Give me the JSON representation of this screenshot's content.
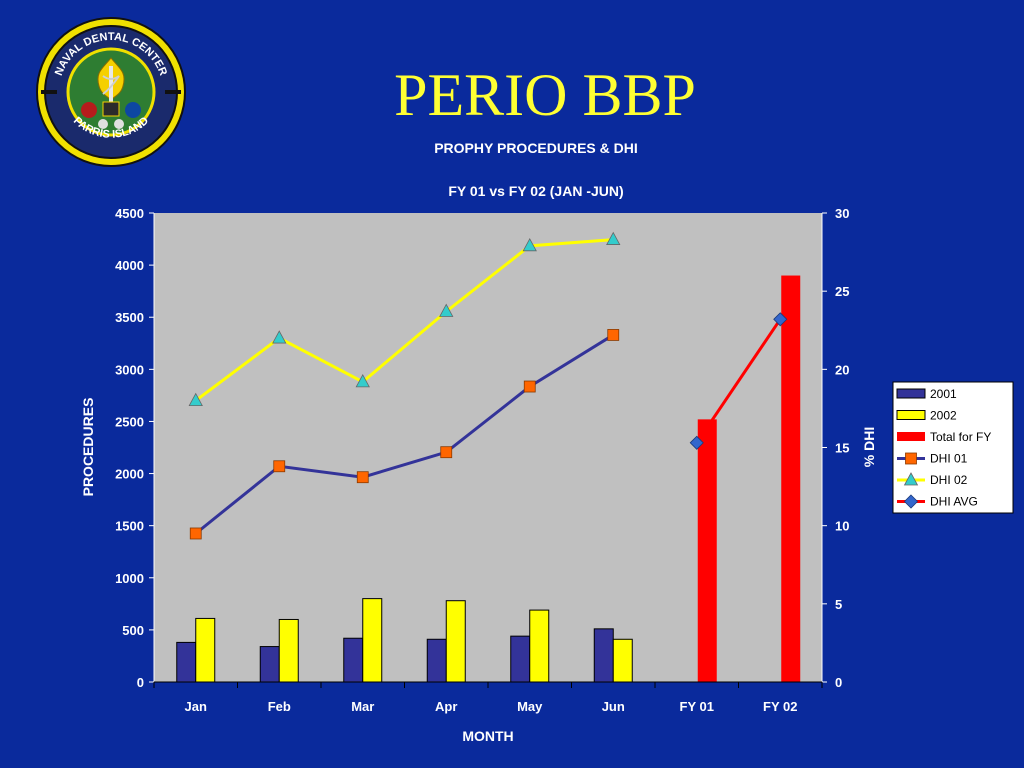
{
  "slide": {
    "title": "PERIO BBP",
    "seal_text_top": "NAVAL DENTAL CENTER",
    "seal_text_bottom": "PARRIS ISLAND"
  },
  "colors": {
    "background": "#0a2a9c",
    "plot_area": "#c0c0c0",
    "title": "#ffff33",
    "series_2001": "#333399",
    "series_2002": "#ffff00",
    "series_total": "#ff0000",
    "dhi01_line": "#333399",
    "dhi01_marker": "#ff6600",
    "dhi02_line": "#ffff00",
    "dhi02_marker": "#33cccc",
    "dhiavg_line": "#ff0000",
    "dhiavg_marker": "#3366cc"
  },
  "chart_data": {
    "type": "bar",
    "title": "PROPHY PROCEDURES & DHI",
    "subtitle": "FY 01 vs FY 02 (JAN -JUN)",
    "xlabel": "MONTH",
    "ylabel": "PROCEDURES",
    "y2label": "% DHI",
    "categories": [
      "Jan",
      "Feb",
      "Mar",
      "Apr",
      "May",
      "Jun",
      "FY 01",
      "FY 02"
    ],
    "ylim": [
      0,
      4500
    ],
    "y2lim": [
      0,
      30
    ],
    "yticks": [
      "0",
      "500",
      "1000",
      "1500",
      "2000",
      "2500",
      "3000",
      "3500",
      "4000",
      "4500"
    ],
    "y2ticks": [
      "0",
      "5",
      "10",
      "15",
      "20",
      "25",
      "30"
    ],
    "grid": false,
    "legend_position": "right",
    "series": [
      {
        "name": "2001",
        "kind": "bar",
        "axis": "left",
        "values": [
          380,
          340,
          420,
          410,
          440,
          510,
          null,
          null
        ]
      },
      {
        "name": "2002",
        "kind": "bar",
        "axis": "left",
        "values": [
          610,
          600,
          800,
          780,
          690,
          410,
          null,
          null
        ]
      },
      {
        "name": "Total for FY",
        "kind": "bar",
        "axis": "right",
        "values": [
          null,
          null,
          null,
          null,
          null,
          null,
          16.8,
          26
        ]
      },
      {
        "name": "DHI 01",
        "kind": "line",
        "marker": "square",
        "axis": "right",
        "values": [
          9.5,
          13.8,
          13.1,
          14.7,
          18.9,
          22.2,
          null,
          null
        ]
      },
      {
        "name": "DHI 02",
        "kind": "line",
        "marker": "triangle",
        "axis": "right",
        "values": [
          18.0,
          22.0,
          19.2,
          23.7,
          27.9,
          28.3,
          null,
          null
        ]
      },
      {
        "name": "DHI AVG",
        "kind": "line",
        "marker": "diamond",
        "axis": "right",
        "values": [
          null,
          null,
          null,
          null,
          null,
          null,
          15.3,
          23.2
        ]
      }
    ]
  }
}
